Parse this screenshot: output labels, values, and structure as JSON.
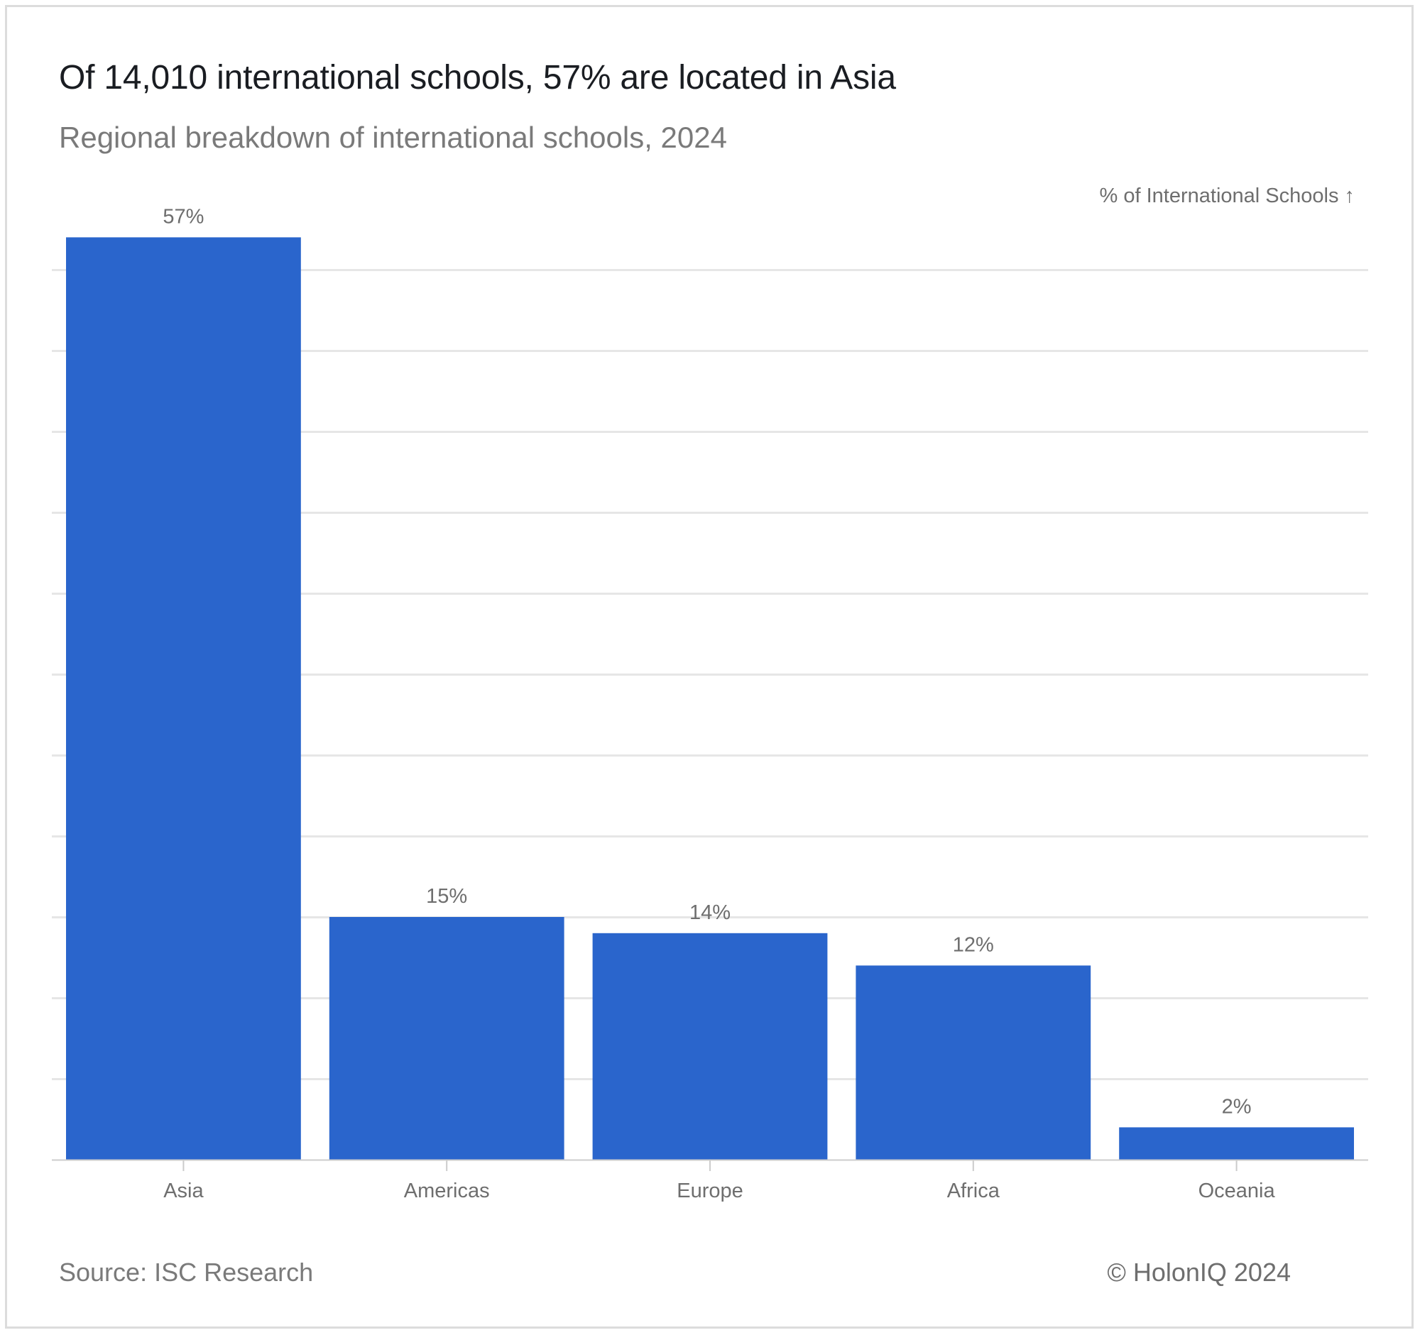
{
  "header": {
    "title": "Of 14,010 international schools, 57% are located in Asia",
    "subtitle": "Regional breakdown of international schools, 2024"
  },
  "footer": {
    "source": "Source: ISC Research",
    "copyright": "© HolonIQ 2024"
  },
  "colors": {
    "bar": "#2a65cc",
    "grid": "#e6e6e6",
    "axis": "#cccccc",
    "label": "#6e6e6e"
  },
  "chart_data": {
    "type": "bar",
    "title": "Of 14,010 international schools, 57% are located in Asia",
    "subtitle": "Regional breakdown of international schools, 2024",
    "xlabel": "",
    "ylabel": "% of International Schools ↑",
    "categories": [
      "Asia",
      "Americas",
      "Europe",
      "Africa",
      "Oceania"
    ],
    "values": [
      57,
      15,
      14,
      12,
      2
    ],
    "data_labels": [
      "57%",
      "15%",
      "14%",
      "12%",
      "2%"
    ],
    "ylim": [
      0,
      55
    ],
    "grid": true,
    "legend": "none"
  }
}
